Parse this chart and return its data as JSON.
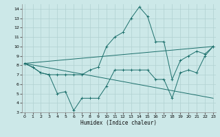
{
  "xlabel": "Humidex (Indice chaleur)",
  "bg_color": "#cce8e8",
  "grid_color": "#b0d0d0",
  "line_color": "#1a6e6a",
  "series": [
    {
      "x": [
        0,
        1,
        2,
        3,
        4,
        5,
        6,
        7,
        8,
        9,
        10,
        11,
        12,
        13,
        14,
        15,
        16,
        17,
        18,
        19,
        20,
        21,
        22,
        23
      ],
      "y": [
        8.2,
        7.8,
        7.2,
        7.0,
        5.0,
        5.2,
        3.2,
        4.5,
        4.5,
        4.5,
        5.8,
        7.5,
        7.5,
        7.5,
        7.5,
        7.5,
        6.5,
        6.5,
        4.5,
        7.2,
        7.5,
        7.2,
        9.0,
        10.0
      ],
      "marker": true
    },
    {
      "x": [
        0,
        1,
        2,
        3,
        4,
        5,
        6,
        7,
        8,
        9,
        10,
        11,
        12,
        13,
        14,
        15,
        16,
        17,
        18,
        19,
        20,
        21,
        22,
        23
      ],
      "y": [
        8.2,
        7.8,
        7.2,
        7.0,
        7.0,
        7.0,
        7.0,
        7.0,
        7.5,
        7.8,
        10.0,
        11.0,
        11.5,
        13.0,
        14.2,
        13.2,
        10.5,
        10.5,
        6.5,
        8.5,
        9.0,
        9.5,
        9.2,
        10.0
      ],
      "marker": true
    },
    {
      "x": [
        0,
        23
      ],
      "y": [
        8.2,
        10.0
      ],
      "marker": false
    },
    {
      "x": [
        0,
        23
      ],
      "y": [
        8.2,
        4.5
      ],
      "marker": false
    }
  ],
  "xlim": [
    -0.3,
    23.3
  ],
  "ylim": [
    3,
    14.5
  ],
  "yticks": [
    3,
    4,
    5,
    6,
    7,
    8,
    9,
    10,
    11,
    12,
    13,
    14
  ],
  "xticks": [
    0,
    1,
    2,
    3,
    4,
    5,
    6,
    7,
    8,
    9,
    10,
    11,
    12,
    13,
    14,
    15,
    16,
    17,
    18,
    19,
    20,
    21,
    22,
    23
  ]
}
